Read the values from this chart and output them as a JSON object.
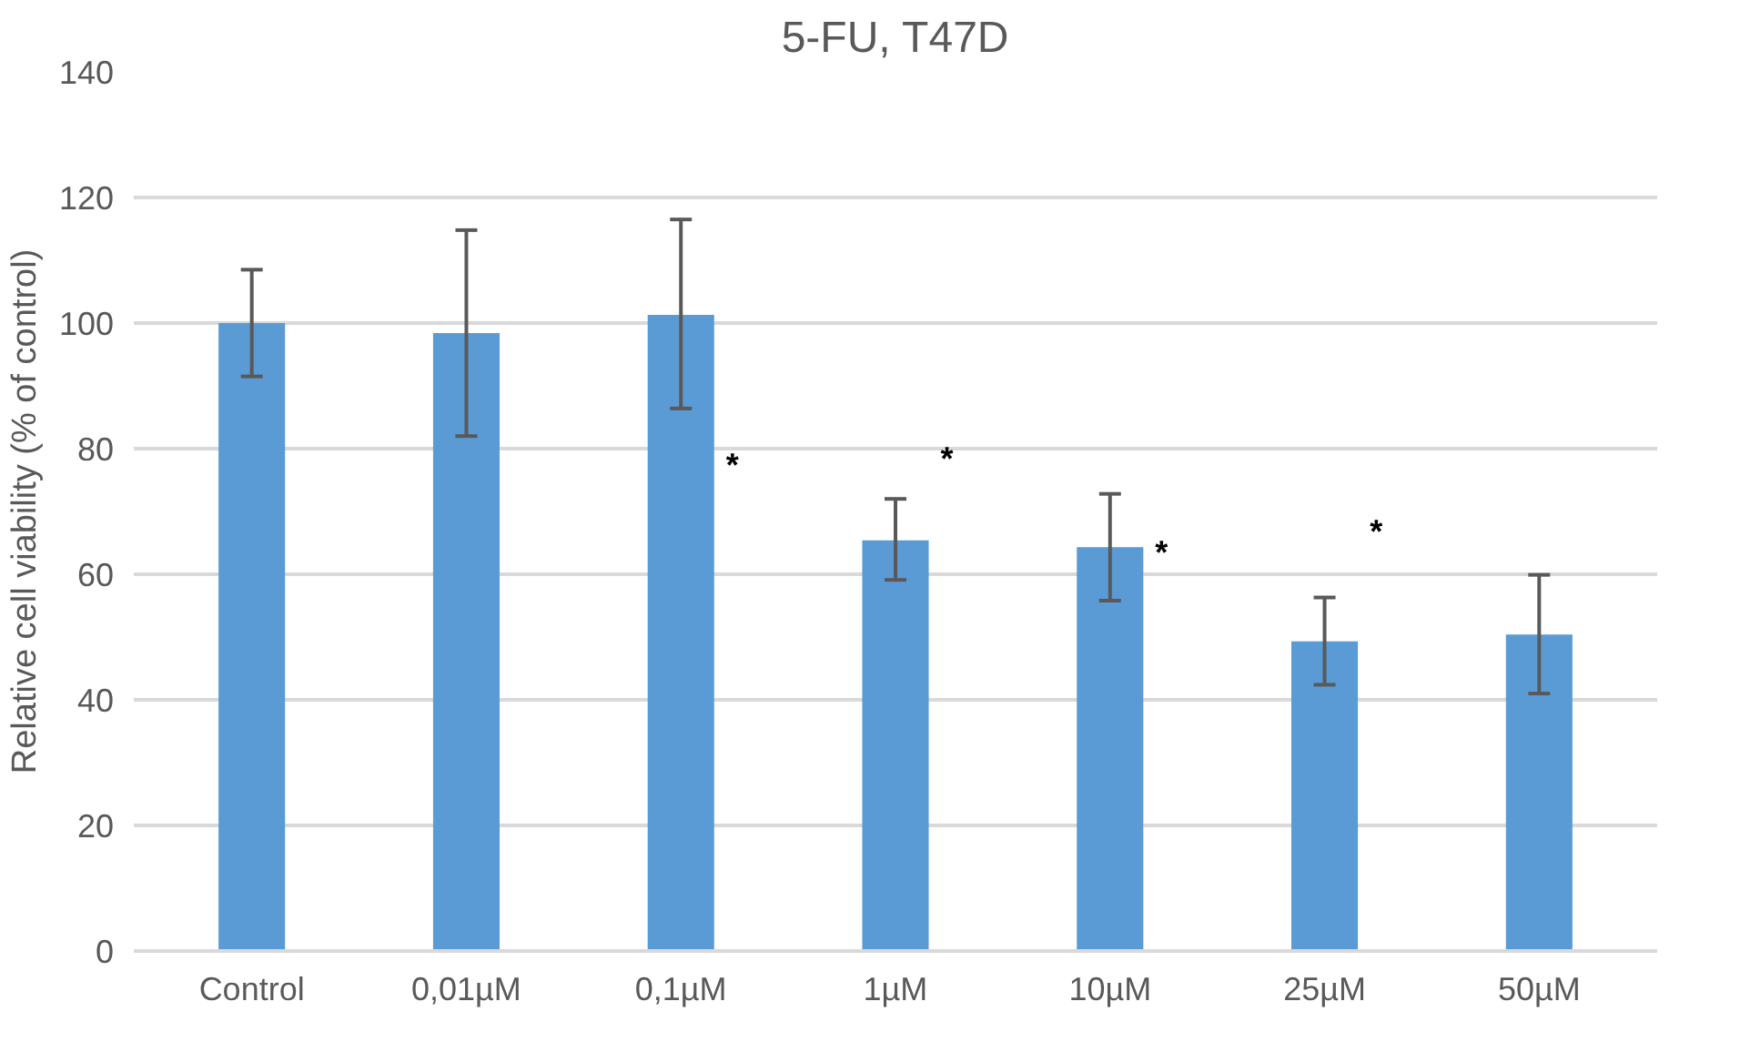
{
  "chart_data": {
    "type": "bar",
    "title": "5-FU, T47D",
    "ylabel": "Relative cell viability (% of control)",
    "categories": [
      "Control",
      "0,01µM",
      "0,1µM",
      "1µM",
      "10µM",
      "25µM",
      "50µM"
    ],
    "values": [
      100,
      98.4,
      101.3,
      65.4,
      64.3,
      49.3,
      50.4
    ],
    "errors": [
      [
        91.5,
        108.5
      ],
      [
        82,
        114.8
      ],
      [
        86.4,
        116.5
      ],
      [
        59.1,
        72
      ],
      [
        55.8,
        72.8
      ],
      [
        42.4,
        56.3
      ],
      [
        41,
        59.9
      ]
    ],
    "color": "#5b9bd5",
    "ylim": [
      0,
      140
    ],
    "yticks": [
      0,
      20,
      40,
      60,
      80,
      100,
      120,
      140
    ],
    "grid": "y",
    "annotations": [
      "*",
      "*",
      "*",
      "*"
    ]
  }
}
